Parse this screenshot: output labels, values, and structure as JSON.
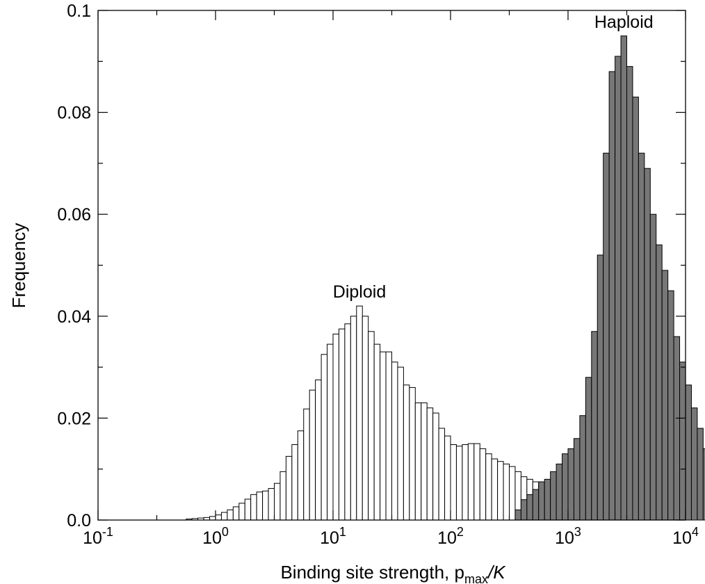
{
  "chart_data": {
    "type": "bar",
    "xlabel": "Binding site strength, p",
    "xlabel_sub": "max",
    "xlabel_tail": "/K",
    "ylabel": "Frequency",
    "xscale": "log",
    "xlim": [
      0.1,
      10000
    ],
    "ylim": [
      0,
      0.1
    ],
    "x_ticks": [
      {
        "base": "10",
        "exp": "-1"
      },
      {
        "base": "10",
        "exp": "0"
      },
      {
        "base": "10",
        "exp": "1"
      },
      {
        "base": "10",
        "exp": "2"
      },
      {
        "base": "10",
        "exp": "3"
      },
      {
        "base": "10",
        "exp": "4"
      }
    ],
    "y_ticks": [
      "0.0",
      "0.02",
      "0.04",
      "0.06",
      "0.08",
      "0.1"
    ],
    "y_tick_values": [
      0,
      0.02,
      0.04,
      0.06,
      0.08,
      0.1
    ],
    "bin_log_width": 0.05,
    "grid": false,
    "series": [
      {
        "name": "Diploid",
        "fill": "#ffffff",
        "log10_x_start": -0.25,
        "values": [
          0.0002,
          0.0003,
          0.0004,
          0.0005,
          0.0007,
          0.001,
          0.0015,
          0.002,
          0.0026,
          0.0033,
          0.0041,
          0.005,
          0.0055,
          0.0057,
          0.0062,
          0.0072,
          0.0095,
          0.0125,
          0.0148,
          0.0175,
          0.0218,
          0.0255,
          0.0275,
          0.0325,
          0.0345,
          0.0365,
          0.0375,
          0.0385,
          0.04,
          0.042,
          0.04,
          0.037,
          0.0345,
          0.033,
          0.033,
          0.031,
          0.03,
          0.0265,
          0.026,
          0.023,
          0.023,
          0.022,
          0.021,
          0.018,
          0.0165,
          0.0148,
          0.0145,
          0.0148,
          0.015,
          0.015,
          0.014,
          0.013,
          0.012,
          0.0115,
          0.011,
          0.0105,
          0.0095,
          0.0085,
          0.008,
          0.0075,
          0.0068,
          0.006,
          0.005,
          0.0045,
          0.004,
          0.0035,
          0.003,
          0.0025,
          0.002,
          0.0015,
          0.001,
          0.0006,
          0.0004,
          0.0002
        ]
      },
      {
        "name": "Haploid",
        "fill": "#777777",
        "log10_x_start": 2.55,
        "values": [
          0.002,
          0.004,
          0.005,
          0.006,
          0.0075,
          0.008,
          0.0095,
          0.011,
          0.013,
          0.014,
          0.016,
          0.0205,
          0.028,
          0.037,
          0.052,
          0.072,
          0.088,
          0.091,
          0.095,
          0.089,
          0.083,
          0.072,
          0.069,
          0.06,
          0.054,
          0.049,
          0.045,
          0.036,
          0.031,
          0.0265,
          0.022,
          0.018,
          0.014,
          0.012,
          0.011,
          0.008,
          0.0045,
          0.002,
          0.0005
        ]
      }
    ],
    "annotations": [
      {
        "text": "Diploid",
        "series": "Diploid"
      },
      {
        "text": "Haploid",
        "series": "Haploid"
      }
    ]
  }
}
